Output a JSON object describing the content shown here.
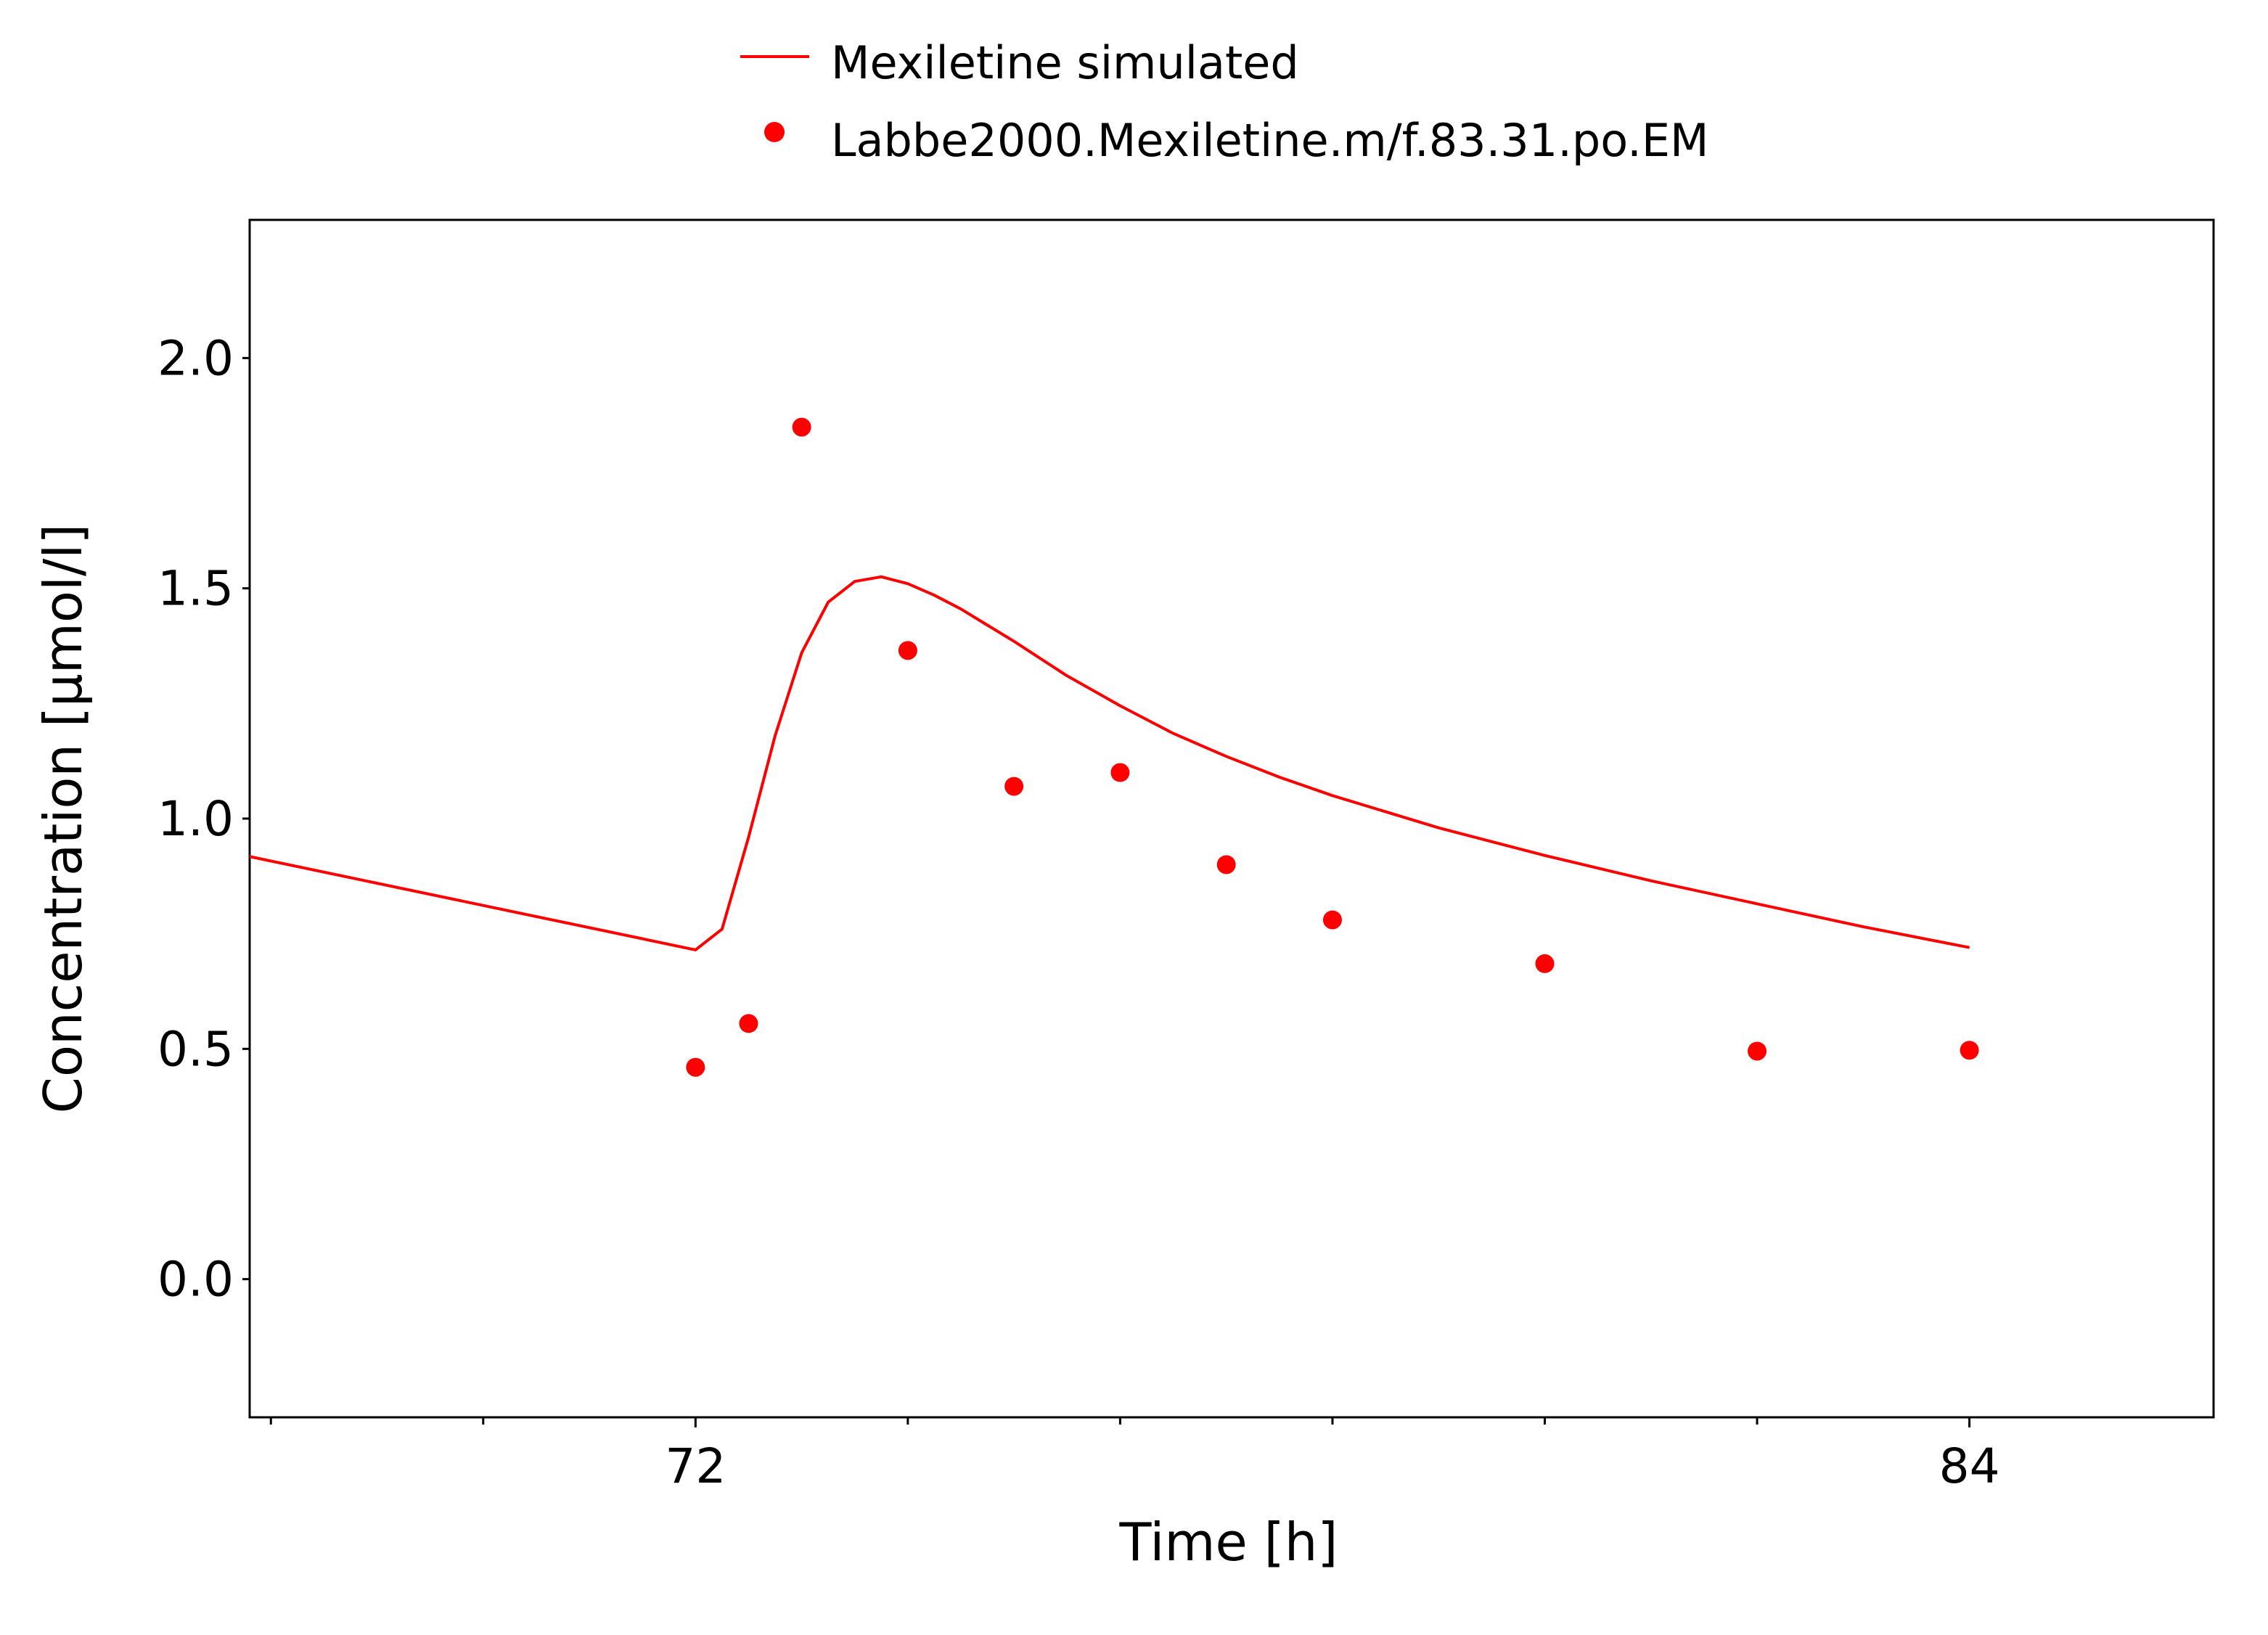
{
  "chart_data": {
    "type": "line",
    "xlabel": "Time [h]",
    "ylabel": "Concentration [µmol/l]",
    "xlim": [
      67.8,
      86.3
    ],
    "ylim": [
      -0.3,
      2.3
    ],
    "x_ticks": [
      {
        "value": 72,
        "label": "72"
      },
      {
        "value": 84,
        "label": "84"
      }
    ],
    "x_minor_ticks": [
      68,
      70,
      74,
      76,
      78,
      80,
      82
    ],
    "y_ticks": [
      {
        "value": 0.0,
        "label": "0.0"
      },
      {
        "value": 0.5,
        "label": "0.5"
      },
      {
        "value": 1.0,
        "label": "1.0"
      },
      {
        "value": 1.5,
        "label": "1.5"
      },
      {
        "value": 2.0,
        "label": "2.0"
      }
    ],
    "grid": false,
    "legend": {
      "position": "top-center"
    },
    "series": [
      {
        "name": "Mexiletine simulated",
        "kind": "line",
        "color": "#ff0000",
        "x": [
          67.75,
          72.0,
          72.25,
          72.5,
          72.75,
          73.0,
          73.25,
          73.5,
          73.75,
          74.0,
          74.25,
          74.5,
          74.75,
          75.0,
          75.5,
          76.0,
          76.5,
          77.0,
          77.5,
          78.0,
          79.0,
          80.0,
          81.0,
          82.0,
          83.0,
          84.0
        ],
        "y": [
          0.92,
          0.715,
          0.76,
          0.96,
          1.18,
          1.36,
          1.47,
          1.515,
          1.525,
          1.51,
          1.485,
          1.455,
          1.42,
          1.385,
          1.31,
          1.245,
          1.185,
          1.135,
          1.09,
          1.05,
          0.98,
          0.92,
          0.865,
          0.815,
          0.765,
          0.72
        ]
      },
      {
        "name": "Labbe2000.Mexiletine.m/f.83.31.po.EM",
        "kind": "scatter",
        "color": "#ff0000",
        "x": [
          72.0,
          72.5,
          73.0,
          74.0,
          75.0,
          76.0,
          77.0,
          78.0,
          80.0,
          82.0,
          84.0
        ],
        "y": [
          0.46,
          0.555,
          1.85,
          1.365,
          1.07,
          1.1,
          0.9,
          0.78,
          0.685,
          0.495,
          0.497
        ]
      }
    ]
  }
}
